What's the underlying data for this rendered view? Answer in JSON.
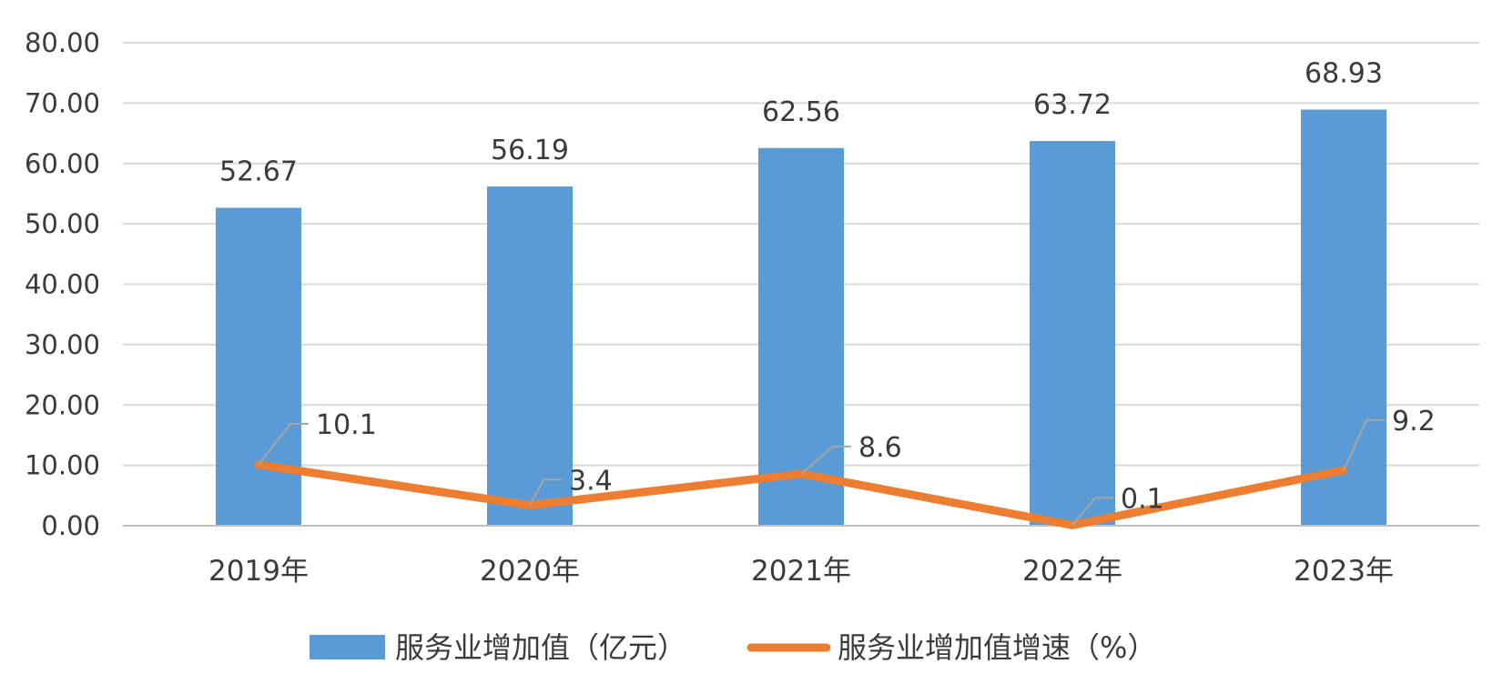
{
  "chart_data": {
    "type": "bar",
    "categories": [
      "2019年",
      "2020年",
      "2021年",
      "2022年",
      "2023年"
    ],
    "ylim": [
      0,
      80
    ],
    "yticks": [
      "0.00",
      "10.00",
      "20.00",
      "30.00",
      "40.00",
      "50.00",
      "60.00",
      "70.00",
      "80.00"
    ],
    "grid": true,
    "legend_position": "bottom",
    "series": [
      {
        "name": "服务业增加值（亿元）",
        "type": "bar",
        "color": "#5b9bd5",
        "values": [
          52.67,
          56.19,
          62.56,
          63.72,
          68.93
        ],
        "labels": [
          "52.67",
          "56.19",
          "62.56",
          "63.72",
          "68.93"
        ]
      },
      {
        "name": "服务业增加值增速（%）",
        "type": "line",
        "color": "#ed7d31",
        "values": [
          10.1,
          3.4,
          8.6,
          0.1,
          9.2
        ],
        "labels": [
          "10.1",
          "3.4",
          "8.6",
          "0.1",
          "9.2"
        ]
      }
    ]
  }
}
